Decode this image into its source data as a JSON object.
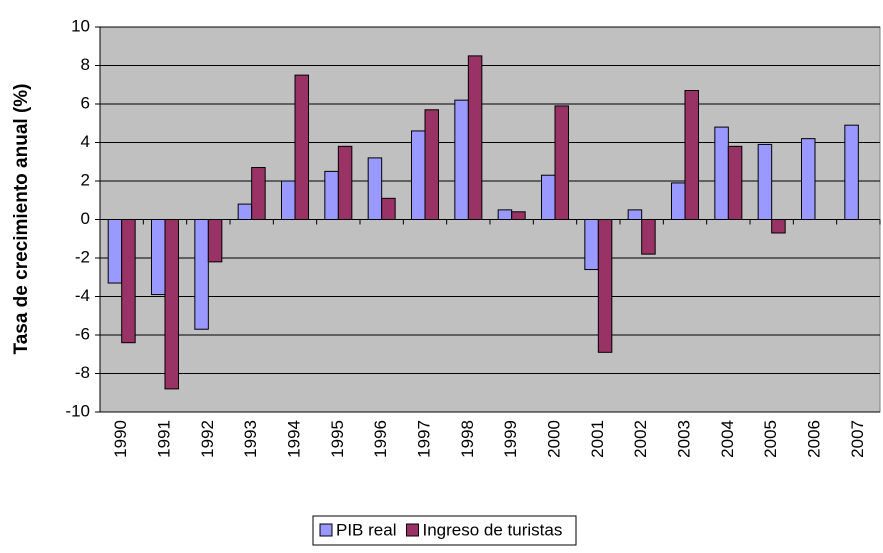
{
  "chart_data": {
    "type": "bar",
    "y_label": "Tasa de crecimiento anual (%)",
    "categories": [
      "1990",
      "1991",
      "1992",
      "1993",
      "1994",
      "1995",
      "1996",
      "1997",
      "1998",
      "1999",
      "2000",
      "2001",
      "2002",
      "2003",
      "2004",
      "2005",
      "2006",
      "2007"
    ],
    "series": [
      {
        "name": "PIB real",
        "color": "#9999ff",
        "values": [
          -3.3,
          -3.9,
          -5.7,
          0.8,
          2.0,
          2.5,
          3.2,
          4.6,
          6.2,
          0.5,
          2.3,
          -2.6,
          0.5,
          1.9,
          4.8,
          3.9,
          4.2,
          4.9
        ]
      },
      {
        "name": "Ingreso de turistas",
        "color": "#993366",
        "values": [
          -6.4,
          -8.8,
          -2.2,
          2.7,
          7.5,
          3.8,
          1.1,
          5.7,
          8.5,
          0.4,
          5.9,
          -6.9,
          -1.8,
          6.7,
          3.8,
          -0.7,
          null,
          null
        ]
      }
    ],
    "ylim": [
      -10,
      10
    ],
    "yticks": [
      -10,
      -8,
      -6,
      -4,
      -2,
      0,
      2,
      4,
      6,
      8,
      10
    ],
    "grid": true,
    "legend": "bottom"
  }
}
